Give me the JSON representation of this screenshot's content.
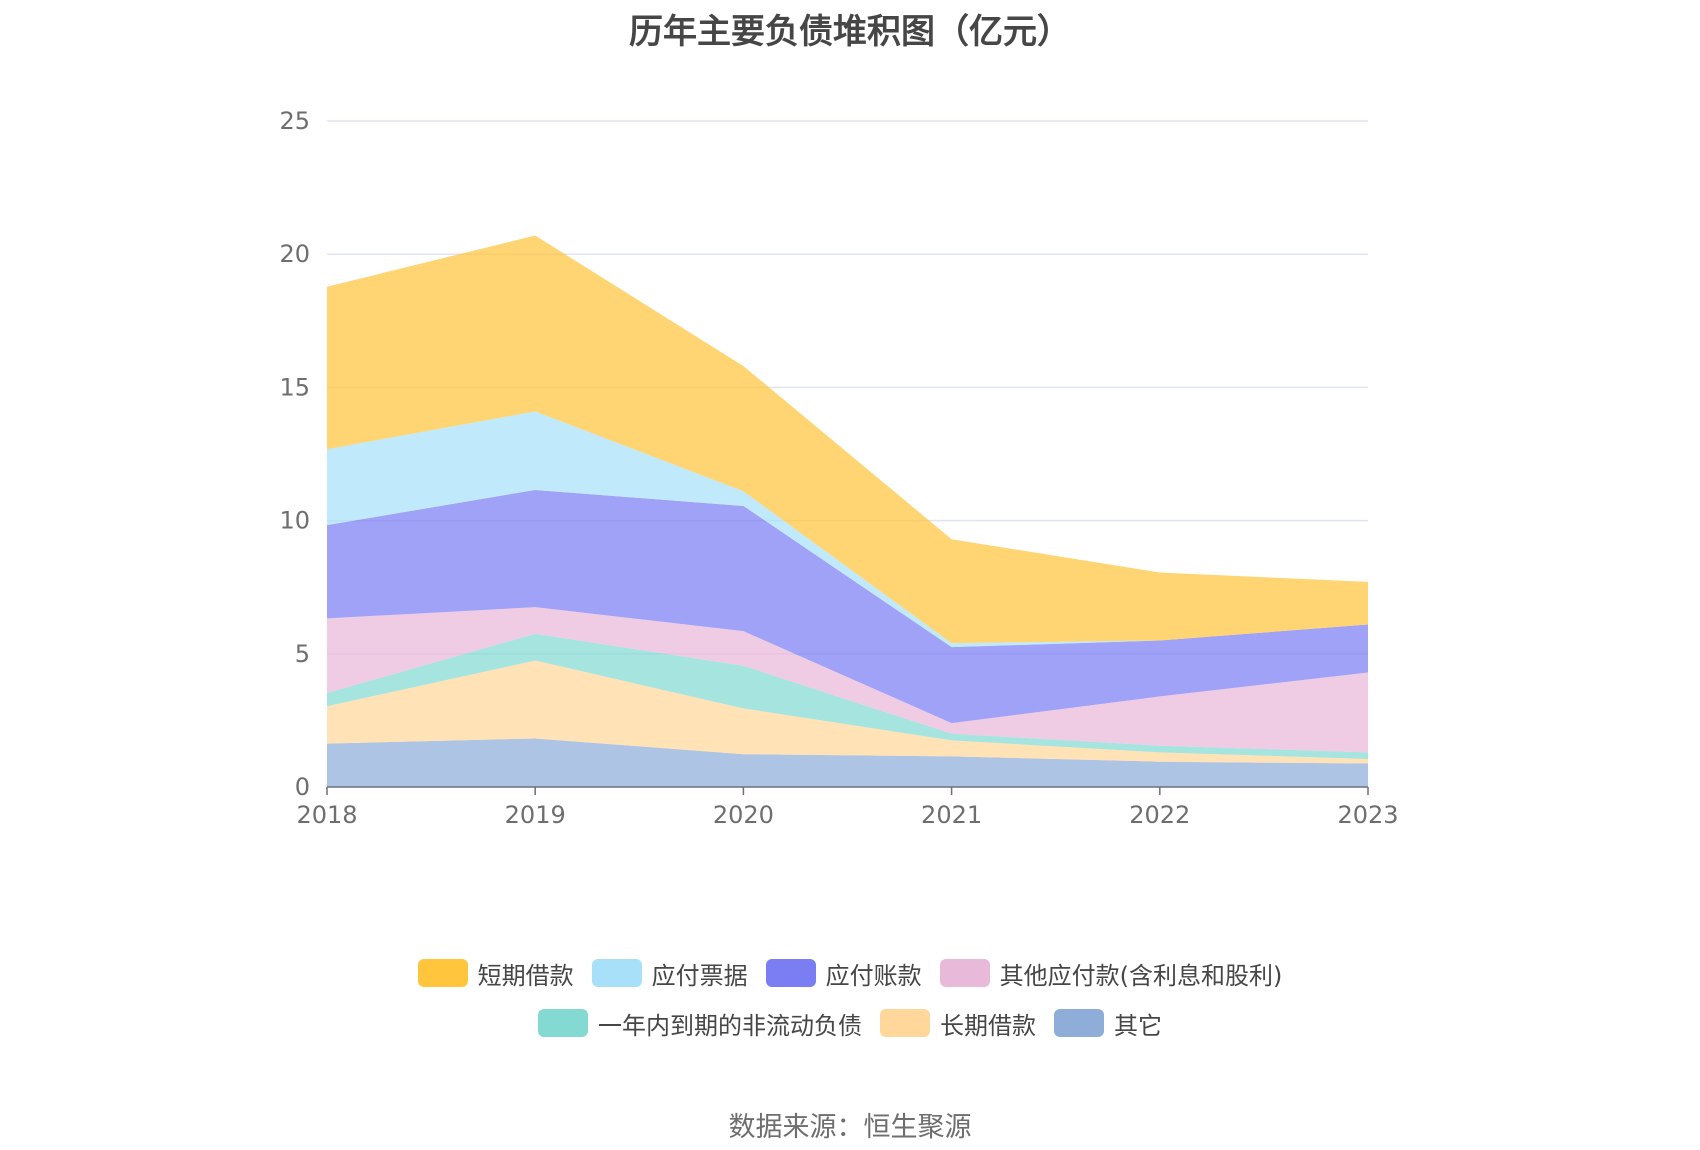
{
  "title": "历年主要负债堆积图（亿元）",
  "source": "数据来源：恒生聚源",
  "chart_data": {
    "type": "area",
    "stacked": true,
    "title": "历年主要负债堆积图（亿元）",
    "xlabel": "",
    "ylabel": "",
    "categories": [
      "2018",
      "2019",
      "2020",
      "2021",
      "2022",
      "2023"
    ],
    "ylim": [
      0,
      25
    ],
    "yticks": [
      0,
      5,
      10,
      15,
      20,
      25
    ],
    "grid": true,
    "legend_position": "bottom",
    "series": [
      {
        "name": "其它",
        "color": "#8eadd9",
        "values": [
          1.63,
          1.82,
          1.23,
          1.15,
          0.95,
          0.88
        ]
      },
      {
        "name": "长期借款",
        "color": "#ffd79a",
        "values": [
          1.4,
          2.93,
          1.72,
          0.6,
          0.35,
          0.17
        ]
      },
      {
        "name": "一年内到期的非流动负债",
        "color": "#84d9d3",
        "values": [
          0.5,
          1.0,
          1.6,
          0.25,
          0.25,
          0.25
        ]
      },
      {
        "name": "其他应付款(含利息和股利)",
        "color": "#e9b9d9",
        "values": [
          2.8,
          1.0,
          1.3,
          0.4,
          1.85,
          3.0
        ]
      },
      {
        "name": "应付账款",
        "color": "#7a7ef2",
        "values": [
          3.5,
          4.4,
          4.7,
          2.85,
          2.1,
          1.8
        ]
      },
      {
        "name": "应付票据",
        "color": "#a8e0fa",
        "values": [
          2.85,
          2.95,
          0.55,
          0.15,
          0.0,
          0.0
        ]
      },
      {
        "name": "短期借款",
        "color": "#ffc53d",
        "values": [
          6.1,
          6.6,
          4.7,
          3.9,
          2.55,
          1.6
        ]
      }
    ]
  }
}
